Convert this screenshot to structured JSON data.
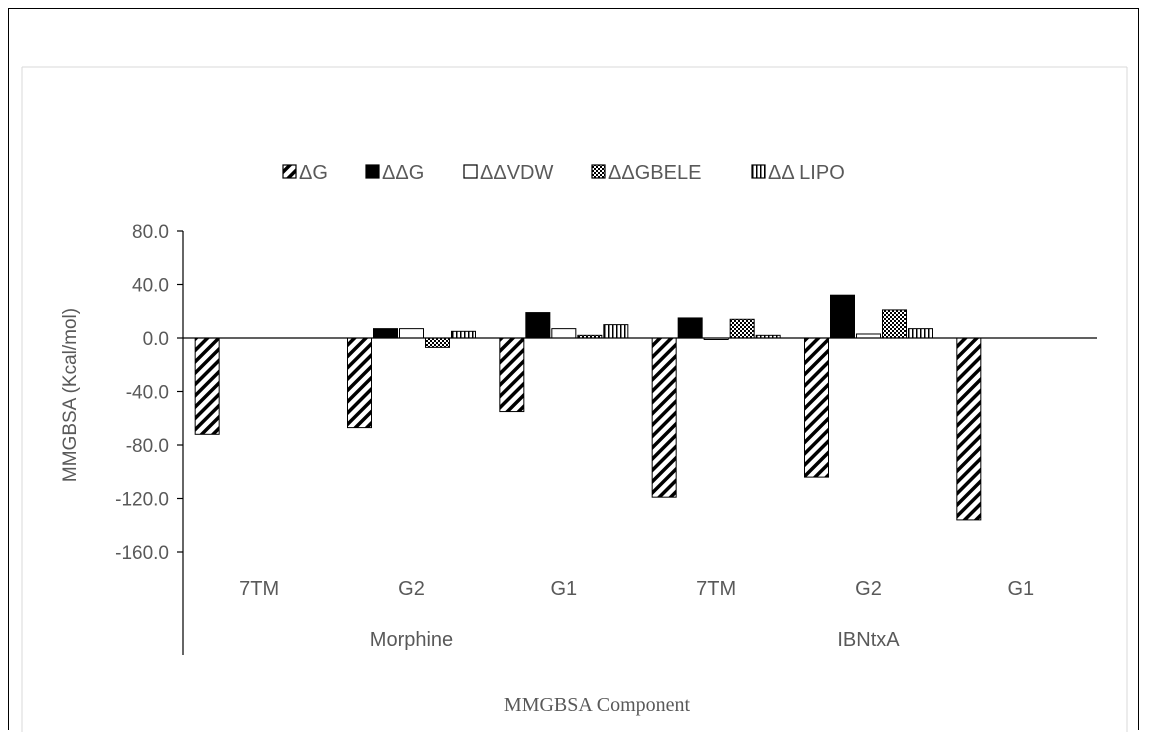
{
  "chart_data": {
    "type": "bar",
    "title": "",
    "legend": {
      "placement": "top",
      "entries": [
        {
          "label": "ΔG",
          "pattern": "diagonal-hatch"
        },
        {
          "label": "ΔΔG",
          "pattern": "solid-black"
        },
        {
          "label": "ΔΔVDW",
          "pattern": "white"
        },
        {
          "label": "ΔΔGBELE",
          "pattern": "checker"
        },
        {
          "label": "ΔΔ LIPO",
          "pattern": "vertical-lines"
        }
      ]
    },
    "categories": [
      "7TM",
      "G2",
      "G1",
      "7TM",
      "G2",
      "G1"
    ],
    "groups": [
      {
        "label": "Morphine",
        "span": [
          0,
          2
        ]
      },
      {
        "label": "IBNtxA",
        "span": [
          3,
          5
        ]
      }
    ],
    "series": [
      {
        "name": "ΔG",
        "values": [
          -72,
          -67,
          -55,
          -119,
          -104,
          -136
        ]
      },
      {
        "name": "ΔΔG",
        "values": [
          0,
          7,
          19,
          15,
          32,
          0
        ]
      },
      {
        "name": "ΔΔVDW",
        "values": [
          0,
          7,
          7,
          -1,
          3,
          0
        ]
      },
      {
        "name": "ΔΔGBELE",
        "values": [
          0,
          -7,
          2,
          14,
          21,
          0
        ]
      },
      {
        "name": "ΔΔ LIPO",
        "values": [
          0,
          5,
          10,
          2,
          7,
          0
        ]
      }
    ],
    "y_ticks": [
      "80.0",
      "40.0",
      "0.0",
      "-40.0",
      "-80.0",
      "-120.0",
      "-160.0"
    ],
    "ylim": [
      -160,
      80
    ],
    "ylabel": "MMGBSA  (Kcal/mol)",
    "xlabel": "MMGBSA  Component",
    "grid": false,
    "colors": {
      "axis": "#000000",
      "text": "#595959",
      "bar_fill": "#000000",
      "bar_outline": "#000000"
    }
  }
}
